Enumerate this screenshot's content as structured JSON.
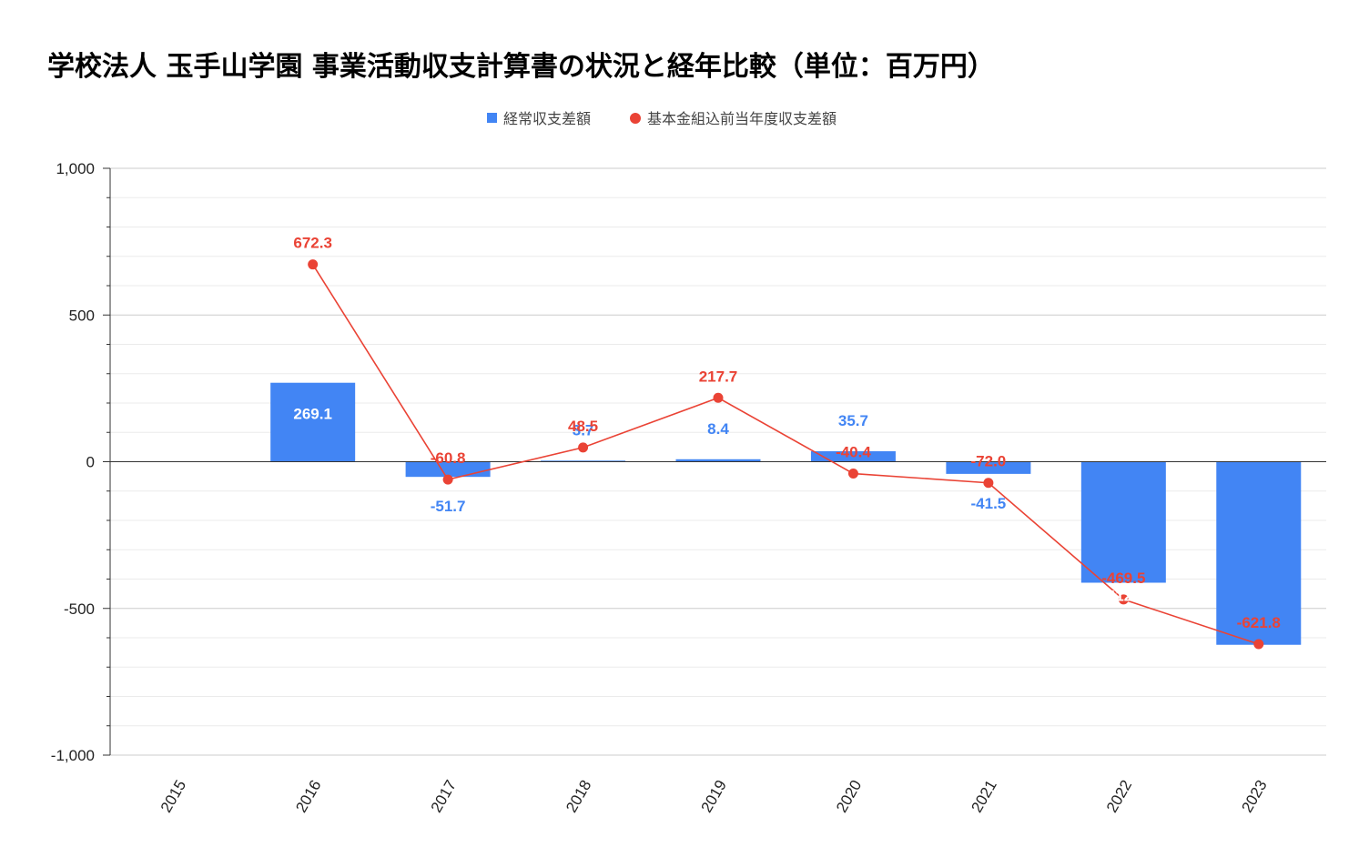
{
  "chart_data": {
    "type": "bar+line",
    "title": "学校法人 玉手山学園  事業活動収支計算書の状況と経年比較（単位：百万円）",
    "categories": [
      "2015",
      "2016",
      "2017",
      "2018",
      "2019",
      "2020",
      "2021",
      "2022",
      "2023"
    ],
    "series": [
      {
        "name": "経常収支差額",
        "type": "bar",
        "color": "#4285f4",
        "values": [
          null,
          269.1,
          -51.7,
          3.7,
          8.4,
          35.7,
          -41.5,
          -412.4,
          -624.0
        ],
        "labels": [
          "",
          "269.1",
          "-51.7",
          "3.7",
          "8.4",
          "35.7",
          "-41.5",
          "-412.4",
          "-624.0"
        ]
      },
      {
        "name": "基本金組込前当年度収支差額",
        "type": "line",
        "color": "#ea4335",
        "values": [
          null,
          672.3,
          -60.8,
          48.5,
          217.7,
          -40.4,
          -72.0,
          -469.5,
          -621.8
        ],
        "labels": [
          "",
          "672.3",
          "-60.8",
          "48.5",
          "217.7",
          "-40.4",
          "-72.0",
          "-469.5",
          "-621.8"
        ]
      }
    ],
    "y_ticks": [
      {
        "value": 1000,
        "label": "1,000"
      },
      {
        "value": 500,
        "label": "500"
      },
      {
        "value": 0,
        "label": "0"
      },
      {
        "value": -500,
        "label": "-500"
      },
      {
        "value": -1000,
        "label": "-1,000"
      }
    ],
    "ylim": [
      -1000,
      1000
    ],
    "grid": true,
    "legend_position": "top-center"
  }
}
